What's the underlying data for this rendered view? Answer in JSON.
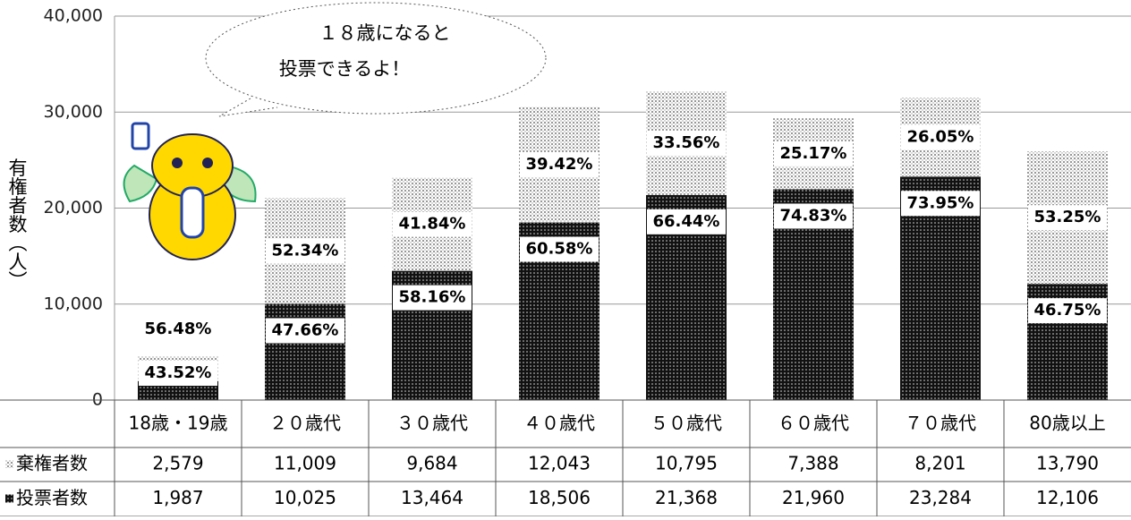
{
  "chart_data": {
    "type": "stacked-bar",
    "y_label": "有権者数（人）",
    "annotation": [
      "１８歳になると",
      "投票できるよ！"
    ],
    "categories": [
      "18歳・19歳",
      "２０歳代",
      "３０歳代",
      "４０歳代",
      "５０歳代",
      "６０歳代",
      "７０歳代",
      "80歳以上"
    ],
    "series": [
      {
        "name": "投票者数",
        "color": "#111111",
        "values": [
          1987,
          10025,
          13464,
          18506,
          21368,
          21960,
          23284,
          12106
        ],
        "value_labels": [
          "1,987",
          "10,025",
          "13,464",
          "18,506",
          "21,368",
          "21,960",
          "23,284",
          "12,106"
        ],
        "percentage_labels": [
          "43.52%",
          "47.66%",
          "58.16%",
          "60.58%",
          "66.44%",
          "74.83%",
          "73.95%",
          "46.75%"
        ]
      },
      {
        "name": "棄権者数",
        "color": "#bbbbbb",
        "values": [
          2579,
          11009,
          9684,
          12043,
          10795,
          7388,
          8201,
          13790
        ],
        "value_labels": [
          "2,579",
          "11,009",
          "9,684",
          "12,043",
          "10,795",
          "7,388",
          "8,201",
          "13,790"
        ],
        "percentage_labels": [
          "56.48%",
          "52.34%",
          "41.84%",
          "39.42%",
          "33.56%",
          "25.17%",
          "26.05%",
          "53.25%"
        ]
      }
    ],
    "ylim": [
      0,
      40000
    ],
    "yticks": [
      0,
      {
        "value": 10000,
        "label": "10,000"
      },
      {
        "value": 20000,
        "label": "20,000"
      },
      {
        "value": 30000,
        "label": "30,000"
      },
      {
        "value": 40000,
        "label": "40,000"
      }
    ],
    "grid": true
  }
}
